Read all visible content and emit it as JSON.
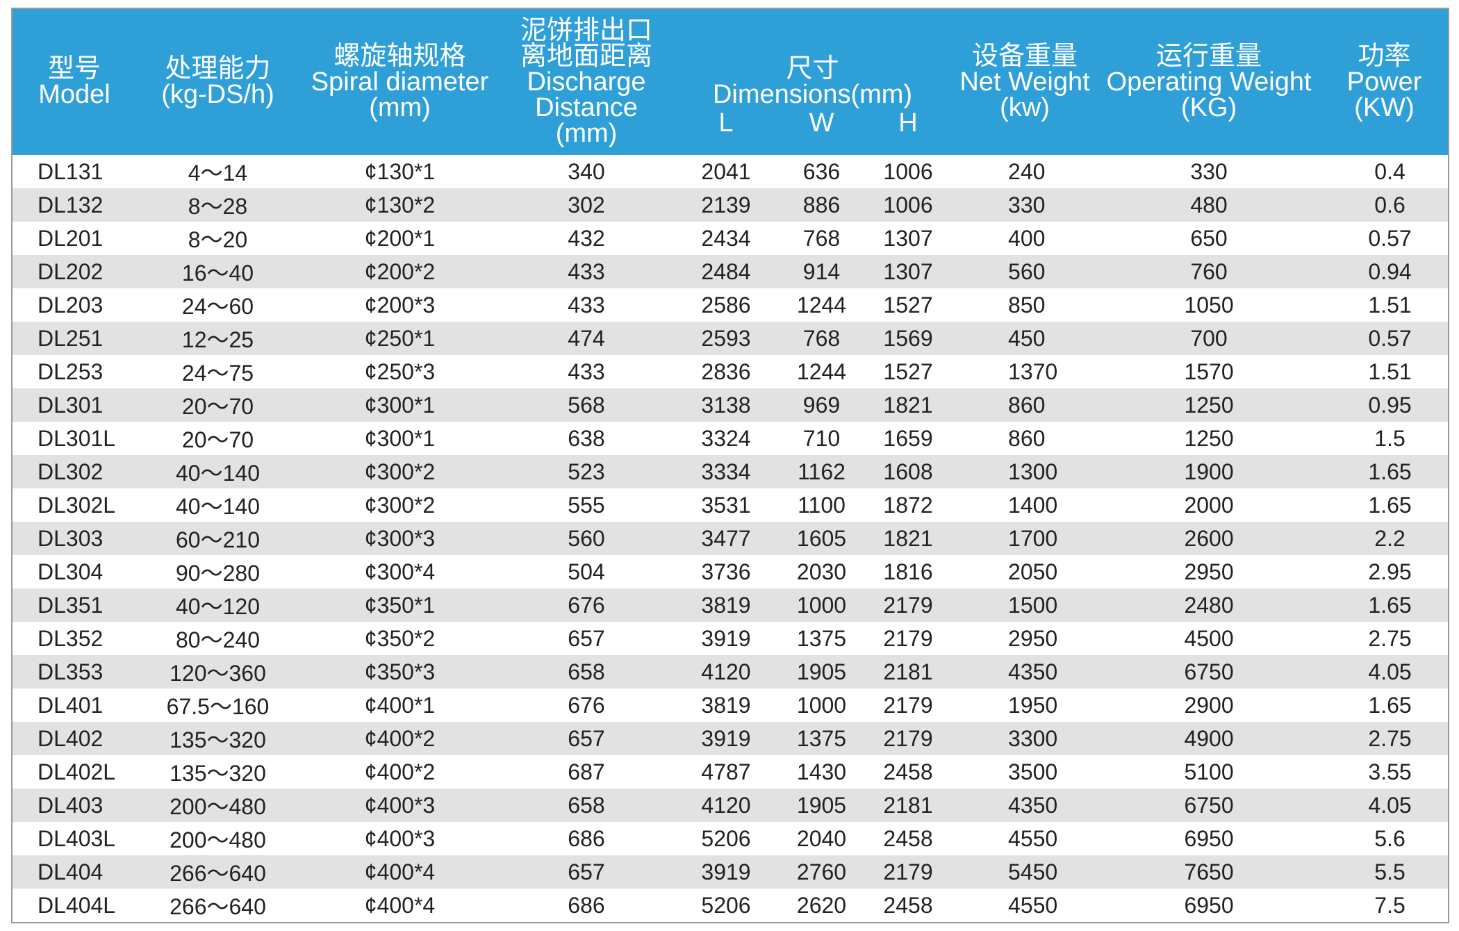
{
  "table": {
    "columns": [
      {
        "lines": [
          "型号",
          "Model"
        ]
      },
      {
        "lines": [
          "处理能力",
          "(kg-DS/h)"
        ]
      },
      {
        "lines": [
          "螺旋轴规格",
          "Spiral diameter",
          "(mm)"
        ]
      },
      {
        "lines": [
          "泥饼排出口",
          "离地面距离",
          "Discharge",
          "Distance",
          "(mm)"
        ]
      },
      {
        "lines": [
          "设备重量",
          "Net Weight",
          "(kw)"
        ]
      },
      {
        "lines": [
          "运行重量",
          "Operating Weight",
          "(KG)"
        ]
      },
      {
        "lines": [
          "功率",
          "Power",
          "(KW)"
        ]
      }
    ],
    "dimensions": {
      "lines": [
        "尺寸",
        "Dimensions(mm)"
      ],
      "sub": [
        "L",
        "W",
        "H"
      ]
    },
    "rows": [
      [
        "DL131",
        "4～14",
        "¢130*1",
        "340",
        "2041",
        "636",
        "1006",
        "240",
        "330",
        "0.4"
      ],
      [
        "DL132",
        "8～28",
        "¢130*2",
        "302",
        "2139",
        "886",
        "1006",
        "330",
        "480",
        "0.6"
      ],
      [
        "DL201",
        "8～20",
        "¢200*1",
        "432",
        "2434",
        "768",
        "1307",
        "400",
        "650",
        "0.57"
      ],
      [
        "DL202",
        "16～40",
        "¢200*2",
        "433",
        "2484",
        "914",
        "1307",
        "560",
        "760",
        "0.94"
      ],
      [
        "DL203",
        "24～60",
        "¢200*3",
        "433",
        "2586",
        "1244",
        "1527",
        "850",
        "1050",
        "1.51"
      ],
      [
        "DL251",
        "12～25",
        "¢250*1",
        "474",
        "2593",
        "768",
        "1569",
        "450",
        "700",
        "0.57"
      ],
      [
        "DL253",
        "24～75",
        "¢250*3",
        "433",
        "2836",
        "1244",
        "1527",
        "1370",
        "1570",
        "1.51"
      ],
      [
        "DL301",
        "20～70",
        "¢300*1",
        "568",
        "3138",
        "969",
        "1821",
        "860",
        "1250",
        "0.95"
      ],
      [
        "DL301L",
        "20～70",
        "¢300*1",
        "638",
        "3324",
        "710",
        "1659",
        "860",
        "1250",
        "1.5"
      ],
      [
        "DL302",
        "40～140",
        "¢300*2",
        "523",
        "3334",
        "1162",
        "1608",
        "1300",
        "1900",
        "1.65"
      ],
      [
        "DL302L",
        "40～140",
        "¢300*2",
        "555",
        "3531",
        "1100",
        "1872",
        "1400",
        "2000",
        "1.65"
      ],
      [
        "DL303",
        "60～210",
        "¢300*3",
        "560",
        "3477",
        "1605",
        "1821",
        "1700",
        "2600",
        "2.2"
      ],
      [
        "DL304",
        "90～280",
        "¢300*4",
        "504",
        "3736",
        "2030",
        "1816",
        "2050",
        "2950",
        "2.95"
      ],
      [
        "DL351",
        "40～120",
        "¢350*1",
        "676",
        "3819",
        "1000",
        "2179",
        "1500",
        "2480",
        "1.65"
      ],
      [
        "DL352",
        "80～240",
        "¢350*2",
        "657",
        "3919",
        "1375",
        "2179",
        "2950",
        "4500",
        "2.75"
      ],
      [
        "DL353",
        "120～360",
        "¢350*3",
        "658",
        "4120",
        "1905",
        "2181",
        "4350",
        "6750",
        "4.05"
      ],
      [
        "DL401",
        "67.5～160",
        "¢400*1",
        "676",
        "3819",
        "1000",
        "2179",
        "1950",
        "2900",
        "1.65"
      ],
      [
        "DL402",
        "135～320",
        "¢400*2",
        "657",
        "3919",
        "1375",
        "2179",
        "3300",
        "4900",
        "2.75"
      ],
      [
        "DL402L",
        "135～320",
        "¢400*2",
        "687",
        "4787",
        "1430",
        "2458",
        "3500",
        "5100",
        "3.55"
      ],
      [
        "DL403",
        "200～480",
        "¢400*3",
        "658",
        "4120",
        "1905",
        "2181",
        "4350",
        "6750",
        "4.05"
      ],
      [
        "DL403L",
        "200～480",
        "¢400*3",
        "686",
        "5206",
        "2040",
        "2458",
        "4550",
        "6950",
        "5.6"
      ],
      [
        "DL404",
        "266～640",
        "¢400*4",
        "657",
        "3919",
        "2760",
        "2179",
        "5450",
        "7650",
        "5.5"
      ],
      [
        "DL404L",
        "266～640",
        "¢400*4",
        "686",
        "5206",
        "2620",
        "2458",
        "4550",
        "6950",
        "7.5"
      ]
    ]
  }
}
